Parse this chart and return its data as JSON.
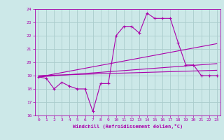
{
  "xlabel": "Windchill (Refroidissement éolien,°C)",
  "ylabel": "",
  "xlim": [
    -0.5,
    23.5
  ],
  "ylim": [
    16,
    24
  ],
  "yticks": [
    16,
    17,
    18,
    19,
    20,
    21,
    22,
    23,
    24
  ],
  "xticks": [
    0,
    1,
    2,
    3,
    4,
    5,
    6,
    7,
    8,
    9,
    10,
    11,
    12,
    13,
    14,
    15,
    16,
    17,
    18,
    19,
    20,
    21,
    22,
    23
  ],
  "bg_color": "#cce8e8",
  "grid_color": "#aacccc",
  "line_color": "#aa00aa",
  "line_width": 0.8,
  "marker": "+",
  "marker_size": 3,
  "series": [
    {
      "x": [
        0,
        1,
        2,
        3,
        4,
        5,
        6,
        7,
        8,
        9,
        10,
        11,
        12,
        13,
        14,
        15,
        16,
        17,
        18,
        19,
        20,
        21,
        22,
        23
      ],
      "y": [
        18.9,
        18.8,
        18.0,
        18.5,
        18.2,
        18.0,
        18.0,
        16.3,
        18.4,
        18.4,
        22.0,
        22.7,
        22.7,
        22.2,
        23.7,
        23.3,
        23.3,
        23.3,
        21.5,
        19.8,
        19.8,
        19.0,
        19.0,
        19.0
      ]
    },
    {
      "x": [
        0,
        23
      ],
      "y": [
        19.0,
        19.4
      ]
    },
    {
      "x": [
        0,
        23
      ],
      "y": [
        18.9,
        19.9
      ]
    },
    {
      "x": [
        0,
        23
      ],
      "y": [
        18.9,
        21.4
      ]
    }
  ]
}
